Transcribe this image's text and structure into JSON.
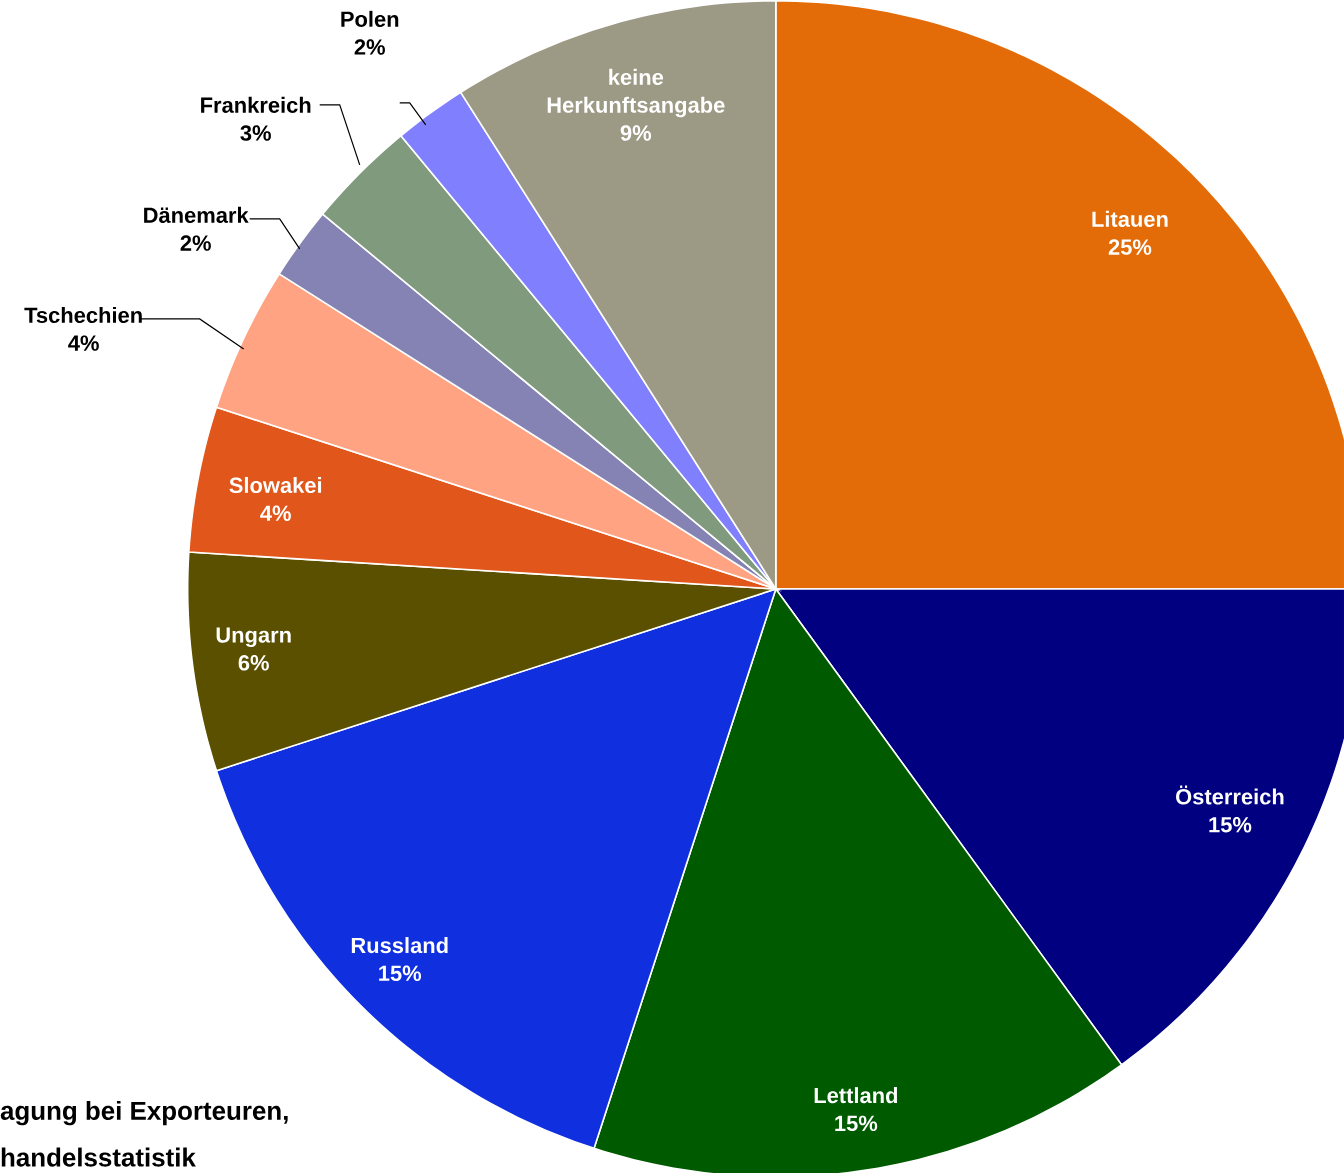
{
  "chart_data": {
    "type": "pie",
    "categories": [
      "Litauen",
      "Österreich",
      "Lettland",
      "Russland",
      "Ungarn",
      "Slowakei",
      "Tschechien",
      "Dänemark",
      "Frankreich",
      "Polen",
      "keine Herkunftsangabe"
    ],
    "values": [
      25,
      15,
      15,
      15,
      6,
      4,
      4,
      2,
      3,
      2,
      9
    ],
    "value_labels": [
      "25%",
      "15%",
      "15%",
      "15%",
      "6%",
      "4%",
      "4%",
      "2%",
      "3%",
      "2%",
      "9%"
    ],
    "colors": [
      "#e36c09",
      "#000080",
      "#005a00",
      "#1030e0",
      "#5a5000",
      "#e0561b",
      "#ffa382",
      "#8583b3",
      "#809a7e",
      "#8080ff",
      "#9c9a85"
    ],
    "annotations": [
      "agung bei Exporteuren,",
      "handelsstatistik"
    ]
  }
}
